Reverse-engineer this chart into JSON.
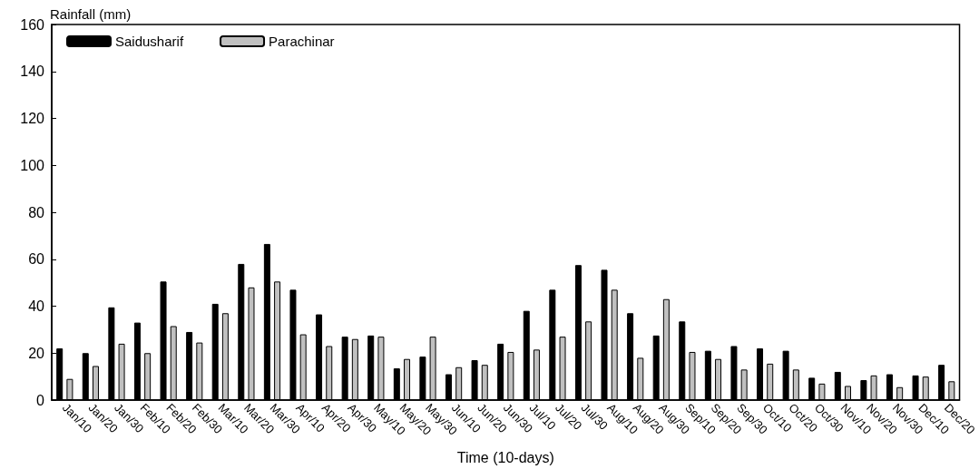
{
  "chart_data": {
    "type": "bar",
    "ylabel": "Rainfall (mm)",
    "xlabel": "Time (10-days)",
    "categories": [
      "Jan/10",
      "Jan/20",
      "Jan/30",
      "Feb/10",
      "Feb/20",
      "Feb/30",
      "Mar/10",
      "Mar/20",
      "Mar/30",
      "Apr/10",
      "Apr/20",
      "Apr/30",
      "May/10",
      "May/20",
      "May/30",
      "Jun/10",
      "Jun/20",
      "Jun/30",
      "Jul/10",
      "Jul/20",
      "Jul/30",
      "Aug/10",
      "Aug/20",
      "Aug/30",
      "Sep/10",
      "Sep/20",
      "Sep/30",
      "Oct/10",
      "Oct/20",
      "Oct/30",
      "Nov/10",
      "Nov/20",
      "Nov/30",
      "Dec/10",
      "Dec/20"
    ],
    "series": [
      {
        "name": "Saidusharif",
        "color": "#000000",
        "values": [
          22,
          20,
          39.5,
          33,
          50.5,
          29,
          41,
          58,
          66.5,
          47,
          36.5,
          27,
          27.5,
          13.5,
          18.5,
          11,
          17,
          24,
          38,
          47,
          57.5,
          55.5,
          37,
          27.5,
          33.5,
          21,
          23,
          22,
          21,
          9.5,
          12,
          8.5,
          11,
          10.5,
          15
        ]
      },
      {
        "name": "Parachinar",
        "color": "#c0c0c0",
        "values": [
          9,
          14.5,
          24,
          20,
          31.5,
          24.5,
          37,
          48,
          50.5,
          28,
          23,
          26,
          27,
          17.5,
          27,
          14,
          15,
          20.5,
          21.5,
          27,
          33.5,
          47,
          18,
          43,
          20.5,
          17.5,
          13,
          15.5,
          13,
          7,
          6,
          10.5,
          5.5,
          10,
          8
        ]
      }
    ],
    "ylim": [
      0,
      160
    ],
    "yticks": [
      0,
      20,
      40,
      60,
      80,
      100,
      120,
      140,
      160
    ],
    "grid": false,
    "legend": "top left"
  }
}
